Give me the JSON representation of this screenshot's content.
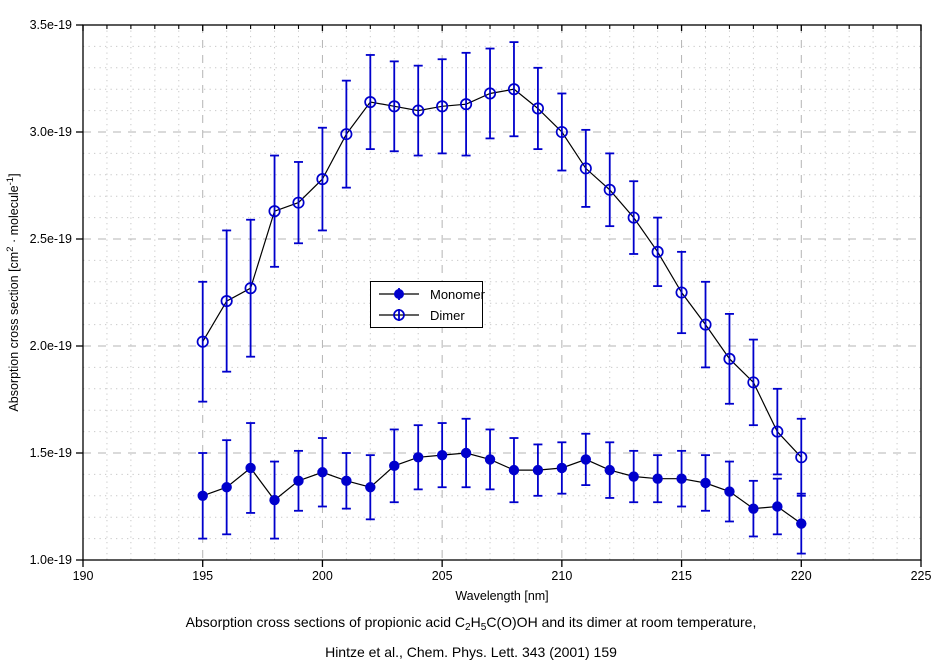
{
  "colors": {
    "series_blue": "#0000cc",
    "line_black": "#000000",
    "grid_major": "#b4b4b4",
    "grid_minor": "#c9c9c9",
    "axis": "#000000",
    "background": "#ffffff"
  },
  "chart_data": {
    "type": "line",
    "title": "",
    "xlabel": "Wavelength [nm]",
    "ylabel_parts": [
      {
        "t": "Absorption cross section [cm"
      },
      {
        "t": "2",
        "sup": true
      },
      {
        "t": " · molecule"
      },
      {
        "t": "-1",
        "sup": true
      },
      {
        "t": "]"
      }
    ],
    "xlim": [
      190,
      225
    ],
    "ylim_e19": [
      1.0,
      3.5
    ],
    "x_major_ticks": [
      190,
      195,
      200,
      205,
      210,
      215,
      220,
      225
    ],
    "x_tick_labels": [
      "190",
      "195",
      "200",
      "205",
      "210",
      "215",
      "220",
      "225"
    ],
    "x_minor_step": 1,
    "y_major_ticks_e19": [
      1.0,
      1.5,
      2.0,
      2.5,
      3.0,
      3.5
    ],
    "y_tick_labels": [
      "1.0e-19",
      "1.5e-19",
      "2.0e-19",
      "2.5e-19",
      "3.0e-19",
      "3.5e-19"
    ],
    "y_minor_step_e19": 0.1,
    "grid": {
      "major_style": "dashed",
      "minor_style": "dotted",
      "grid_on": true
    },
    "legend": {
      "position": "center",
      "entries": [
        {
          "label": "Monomer",
          "marker": "filled-circle"
        },
        {
          "label": "Dimer",
          "marker": "open-circle"
        }
      ]
    },
    "x": [
      195,
      196,
      197,
      198,
      199,
      200,
      201,
      202,
      203,
      204,
      205,
      206,
      207,
      208,
      209,
      210,
      211,
      212,
      213,
      214,
      215,
      216,
      217,
      218,
      219,
      220
    ],
    "series": [
      {
        "name": "Dimer",
        "marker": "open-circle",
        "marker_color": "#0000cc",
        "line_color": "#000000",
        "values_e19": [
          2.02,
          2.21,
          2.27,
          2.63,
          2.67,
          2.78,
          2.99,
          3.14,
          3.12,
          3.1,
          3.12,
          3.13,
          3.18,
          3.2,
          3.11,
          3.0,
          2.83,
          2.73,
          2.6,
          2.44,
          2.25,
          2.1,
          1.94,
          1.83,
          1.6,
          1.48
        ],
        "errors_e19": [
          0.28,
          0.33,
          0.32,
          0.26,
          0.19,
          0.24,
          0.25,
          0.22,
          0.21,
          0.21,
          0.22,
          0.24,
          0.21,
          0.22,
          0.19,
          0.18,
          0.18,
          0.17,
          0.17,
          0.16,
          0.19,
          0.2,
          0.21,
          0.2,
          0.2,
          0.18
        ]
      },
      {
        "name": "Monomer",
        "marker": "filled-circle",
        "marker_color": "#0000cc",
        "line_color": "#000000",
        "values_e19": [
          1.3,
          1.34,
          1.43,
          1.28,
          1.37,
          1.41,
          1.37,
          1.34,
          1.44,
          1.48,
          1.49,
          1.5,
          1.47,
          1.42,
          1.42,
          1.43,
          1.47,
          1.42,
          1.39,
          1.38,
          1.38,
          1.36,
          1.32,
          1.24,
          1.25,
          1.17
        ],
        "errors_e19": [
          0.2,
          0.22,
          0.21,
          0.18,
          0.14,
          0.16,
          0.13,
          0.15,
          0.17,
          0.15,
          0.15,
          0.16,
          0.14,
          0.15,
          0.12,
          0.12,
          0.12,
          0.13,
          0.12,
          0.11,
          0.13,
          0.13,
          0.14,
          0.13,
          0.13,
          0.14
        ]
      }
    ]
  },
  "caption": {
    "line1_parts": [
      {
        "t": "Absorption cross sections of propionic acid C"
      },
      {
        "t": "2",
        "sub": true
      },
      {
        "t": "H"
      },
      {
        "t": "5",
        "sub": true
      },
      {
        "t": "C(O)OH and its dimer at room temperature,"
      }
    ],
    "line2": "Hintze et al., Chem. Phys. Lett. 343 (2001) 159"
  }
}
